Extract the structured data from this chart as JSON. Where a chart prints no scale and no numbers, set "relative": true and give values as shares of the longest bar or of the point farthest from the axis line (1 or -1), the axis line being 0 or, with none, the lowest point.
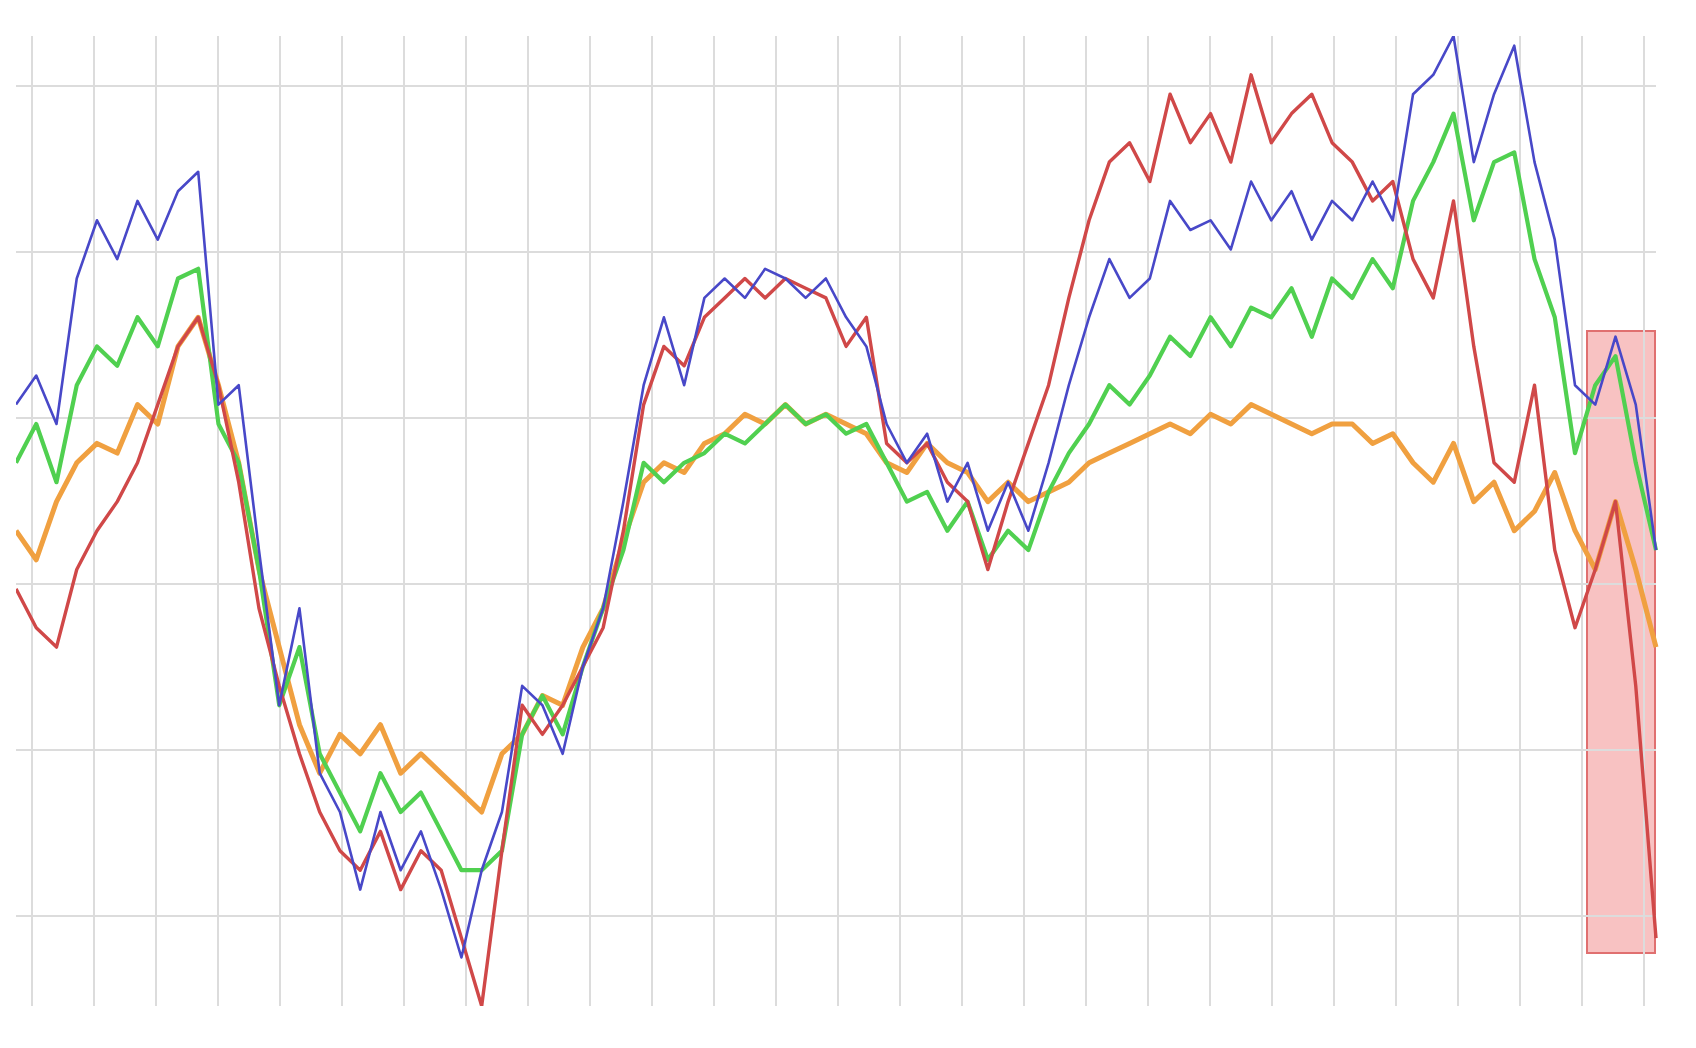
{
  "chart_data": {
    "type": "line",
    "relative": true,
    "grid": true,
    "marker": "none",
    "categories": [
      null,
      null,
      null,
      null,
      null,
      null,
      null,
      null,
      null,
      null,
      null,
      null,
      null,
      null,
      null,
      null,
      null,
      null,
      null,
      null,
      null,
      null,
      null,
      null,
      null,
      null,
      null,
      null,
      null,
      null,
      null,
      null,
      null,
      null,
      null,
      null,
      null,
      null,
      null,
      null,
      null,
      null,
      null,
      null,
      null,
      null,
      null,
      null,
      null,
      null,
      null,
      null,
      null,
      null,
      null,
      null,
      null,
      null,
      null,
      null,
      null,
      null,
      null,
      null,
      null,
      null,
      null,
      null,
      null,
      null,
      null,
      null,
      null,
      null,
      null,
      null,
      null,
      null,
      null,
      null,
      null,
      null
    ],
    "series": [
      {
        "color": "#f0a040",
        "values": [
          0.49,
          0.46,
          0.52,
          0.56,
          0.58,
          0.57,
          0.62,
          0.6,
          0.68,
          0.71,
          0.64,
          0.56,
          0.45,
          0.37,
          0.29,
          0.24,
          0.28,
          0.26,
          0.29,
          0.24,
          0.26,
          0.24,
          0.22,
          0.2,
          0.26,
          0.28,
          0.32,
          0.31,
          0.37,
          0.41,
          0.48,
          0.54,
          0.56,
          0.55,
          0.58,
          0.59,
          0.61,
          0.6,
          0.62,
          0.6,
          0.61,
          0.6,
          0.59,
          0.56,
          0.55,
          0.58,
          0.56,
          0.55,
          0.52,
          0.54,
          0.52,
          0.53,
          0.54,
          0.56,
          0.57,
          0.58,
          0.59,
          0.6,
          0.59,
          0.61,
          0.6,
          0.62,
          0.61,
          0.6,
          0.59,
          0.6,
          0.6,
          0.58,
          0.59,
          0.56,
          0.54,
          0.58,
          0.52,
          0.54,
          0.49,
          0.51,
          0.55,
          0.49,
          0.45,
          0.52,
          0.45,
          0.37
        ]
      },
      {
        "color": "#50d050",
        "values": [
          0.56,
          0.6,
          0.54,
          0.64,
          0.68,
          0.66,
          0.71,
          0.68,
          0.75,
          0.76,
          0.6,
          0.56,
          0.45,
          0.31,
          0.37,
          0.26,
          0.22,
          0.18,
          0.24,
          0.2,
          0.22,
          0.18,
          0.14,
          0.14,
          0.16,
          0.28,
          0.32,
          0.28,
          0.35,
          0.41,
          0.47,
          0.56,
          0.54,
          0.56,
          0.57,
          0.59,
          0.58,
          0.6,
          0.62,
          0.6,
          0.61,
          0.59,
          0.6,
          0.56,
          0.52,
          0.53,
          0.49,
          0.52,
          0.46,
          0.49,
          0.47,
          0.53,
          0.57,
          0.6,
          0.64,
          0.62,
          0.65,
          0.69,
          0.67,
          0.71,
          0.68,
          0.72,
          0.71,
          0.74,
          0.69,
          0.75,
          0.73,
          0.77,
          0.74,
          0.83,
          0.87,
          0.92,
          0.81,
          0.87,
          0.88,
          0.77,
          0.71,
          0.57,
          0.64,
          0.67,
          0.56,
          0.47
        ]
      },
      {
        "color": "#d04848",
        "values": [
          0.43,
          0.39,
          0.37,
          0.45,
          0.49,
          0.52,
          0.56,
          0.62,
          0.68,
          0.71,
          0.64,
          0.54,
          0.41,
          0.33,
          0.26,
          0.2,
          0.16,
          0.14,
          0.18,
          0.12,
          0.16,
          0.14,
          0.07,
          0,
          0.16,
          0.31,
          0.28,
          0.31,
          0.35,
          0.39,
          0.49,
          0.62,
          0.68,
          0.66,
          0.71,
          0.73,
          0.75,
          0.73,
          0.75,
          0.74,
          0.73,
          0.68,
          0.71,
          0.58,
          0.56,
          0.58,
          0.54,
          0.52,
          0.45,
          0.52,
          0.58,
          0.64,
          0.73,
          0.81,
          0.87,
          0.89,
          0.85,
          0.94,
          0.89,
          0.92,
          0.87,
          0.96,
          0.89,
          0.92,
          0.94,
          0.89,
          0.87,
          0.83,
          0.85,
          0.77,
          0.73,
          0.83,
          0.68,
          0.56,
          0.54,
          0.64,
          0.47,
          0.39,
          0.45,
          0.52,
          0.33,
          0.07
        ]
      },
      {
        "color": "#4848c8",
        "values": [
          0.62,
          0.65,
          0.6,
          0.75,
          0.81,
          0.77,
          0.83,
          0.79,
          0.84,
          0.86,
          0.62,
          0.64,
          0.47,
          0.31,
          0.41,
          0.24,
          0.2,
          0.12,
          0.2,
          0.14,
          0.18,
          0.12,
          0.05,
          0.14,
          0.2,
          0.33,
          0.31,
          0.26,
          0.35,
          0.41,
          0.52,
          0.64,
          0.71,
          0.64,
          0.73,
          0.75,
          0.73,
          0.76,
          0.75,
          0.73,
          0.75,
          0.71,
          0.68,
          0.6,
          0.56,
          0.59,
          0.52,
          0.56,
          0.49,
          0.54,
          0.49,
          0.56,
          0.64,
          0.71,
          0.77,
          0.73,
          0.75,
          0.83,
          0.8,
          0.81,
          0.78,
          0.85,
          0.81,
          0.84,
          0.79,
          0.83,
          0.81,
          0.85,
          0.81,
          0.94,
          0.96,
          1.0,
          0.87,
          0.94,
          0.99,
          0.87,
          0.79,
          0.64,
          0.62,
          0.69,
          0.62,
          0.47
        ]
      }
    ]
  }
}
